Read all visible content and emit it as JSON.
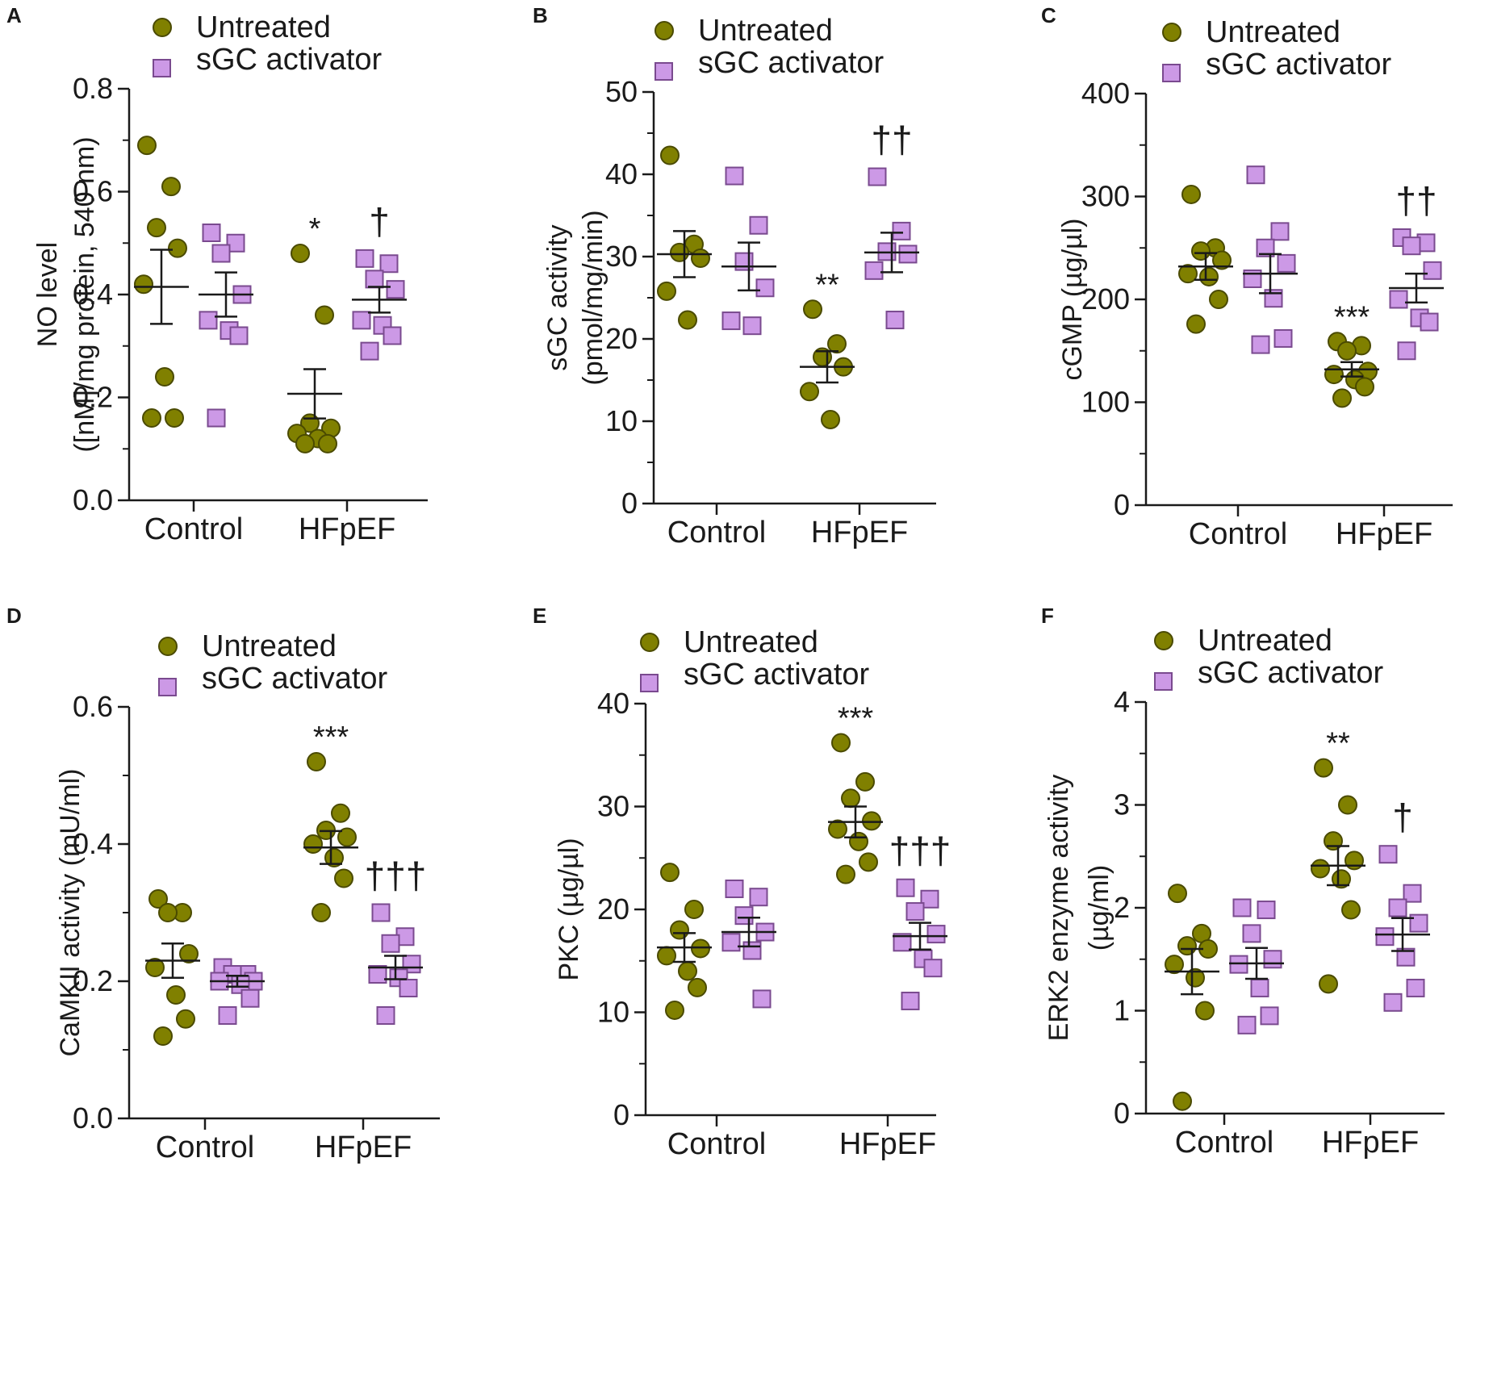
{
  "figure": {
    "colors": {
      "untreated_fill": "#808000",
      "untreated_stroke": "#4a4a00",
      "activator_fill": "#cc99e6",
      "activator_stroke": "#7a4a8f",
      "axis": "#1a1a1a",
      "mean_line": "#1a1a1a"
    },
    "legend": {
      "untreated_label": "Untreated",
      "activator_label": "sGC activator",
      "untreated_marker": "circle",
      "activator_marker": "square"
    }
  },
  "chart_data": [
    {
      "panel": "A",
      "type": "scatter",
      "ylabel_lines": [
        "NO level",
        "([nM]/mg protein, 540 nm)"
      ],
      "ylim": [
        0,
        0.8
      ],
      "yticks": [
        0.0,
        0.2,
        0.4,
        0.6,
        0.8
      ],
      "ytick_labels": [
        "0.0",
        "0.2",
        "0.4",
        "0.6",
        "0.8"
      ],
      "minor_ticks_per_interval": 1,
      "categories": [
        "Control",
        "HFpEF"
      ],
      "groups": [
        {
          "category": "Control",
          "series": "Untreated",
          "points": [
            0.69,
            0.61,
            0.53,
            0.49,
            0.42,
            0.24,
            0.16,
            0.16
          ],
          "mean": 0.415,
          "sem": 0.072,
          "sig": ""
        },
        {
          "category": "Control",
          "series": "sGC activator",
          "points": [
            0.52,
            0.5,
            0.48,
            0.4,
            0.35,
            0.33,
            0.32,
            0.16
          ],
          "mean": 0.4,
          "sem": 0.043,
          "sig": ""
        },
        {
          "category": "HFpEF",
          "series": "Untreated",
          "points": [
            0.48,
            0.36,
            0.15,
            0.14,
            0.13,
            0.12,
            0.11,
            0.11
          ],
          "mean": 0.207,
          "sem": 0.048,
          "sig": "*"
        },
        {
          "category": "HFpEF",
          "series": "sGC activator",
          "points": [
            0.47,
            0.46,
            0.43,
            0.41,
            0.35,
            0.34,
            0.32,
            0.29
          ],
          "mean": 0.39,
          "sem": 0.025,
          "sig": "†"
        }
      ]
    },
    {
      "panel": "B",
      "type": "scatter",
      "ylabel_lines": [
        "sGC activity",
        "(pmol/mg/min)"
      ],
      "ylim": [
        0,
        50
      ],
      "yticks": [
        0,
        10,
        20,
        30,
        40,
        50
      ],
      "ytick_labels": [
        "0",
        "10",
        "20",
        "30",
        "40",
        "50"
      ],
      "minor_ticks_per_interval": 1,
      "categories": [
        "Control",
        "HFpEF"
      ],
      "groups": [
        {
          "category": "Control",
          "series": "Untreated",
          "points": [
            42.3,
            31.5,
            30.5,
            29.8,
            25.8,
            22.3
          ],
          "mean": 30.3,
          "sem": 2.8,
          "sig": ""
        },
        {
          "category": "Control",
          "series": "sGC activator",
          "points": [
            39.8,
            33.8,
            29.4,
            26.2,
            22.2,
            21.6
          ],
          "mean": 28.8,
          "sem": 2.9,
          "sig": ""
        },
        {
          "category": "HFpEF",
          "series": "Untreated",
          "points": [
            23.6,
            19.4,
            17.8,
            16.6,
            13.6,
            10.2
          ],
          "mean": 16.6,
          "sem": 1.9,
          "sig": "**"
        },
        {
          "category": "HFpEF",
          "series": "sGC activator",
          "points": [
            39.7,
            33.1,
            30.6,
            30.3,
            28.3,
            22.3
          ],
          "mean": 30.5,
          "sem": 2.4,
          "sig": "††"
        }
      ]
    },
    {
      "panel": "C",
      "type": "scatter",
      "ylabel_lines": [
        "cGMP (µg/µl)"
      ],
      "ylim": [
        0,
        400
      ],
      "yticks": [
        0,
        100,
        200,
        300,
        400
      ],
      "ytick_labels": [
        "0",
        "100",
        "200",
        "300",
        "400"
      ],
      "minor_ticks_per_interval": 1,
      "categories": [
        "Control",
        "HFpEF"
      ],
      "groups": [
        {
          "category": "Control",
          "series": "Untreated",
          "points": [
            302,
            250,
            247,
            238,
            225,
            222,
            200,
            176
          ],
          "mean": 232,
          "sem": 13,
          "sig": ""
        },
        {
          "category": "Control",
          "series": "sGC activator",
          "points": [
            321,
            266,
            250,
            235,
            220,
            201,
            162,
            156
          ],
          "mean": 225,
          "sem": 19,
          "sig": ""
        },
        {
          "category": "HFpEF",
          "series": "Untreated",
          "points": [
            159,
            155,
            150,
            130,
            127,
            122,
            115,
            104
          ],
          "mean": 132,
          "sem": 7,
          "sig": "***"
        },
        {
          "category": "HFpEF",
          "series": "sGC activator",
          "points": [
            260,
            255,
            252,
            228,
            200,
            182,
            178,
            150
          ],
          "mean": 211,
          "sem": 14,
          "sig": "††"
        }
      ]
    },
    {
      "panel": "D",
      "type": "scatter",
      "ylabel_lines": [
        "CaMKII activity (mU/ml)"
      ],
      "ylim": [
        0,
        0.6
      ],
      "yticks": [
        0.0,
        0.2,
        0.4,
        0.6
      ],
      "ytick_labels": [
        "0.0",
        "0.2",
        "0.4",
        "0.6"
      ],
      "minor_ticks_per_interval": 1,
      "categories": [
        "Control",
        "HFpEF"
      ],
      "groups": [
        {
          "category": "Control",
          "series": "Untreated",
          "points": [
            0.32,
            0.3,
            0.3,
            0.24,
            0.22,
            0.18,
            0.145,
            0.12
          ],
          "mean": 0.23,
          "sem": 0.025,
          "sig": ""
        },
        {
          "category": "Control",
          "series": "sGC activator",
          "points": [
            0.22,
            0.21,
            0.21,
            0.2,
            0.2,
            0.195,
            0.175,
            0.15
          ],
          "mean": 0.2,
          "sem": 0.008,
          "sig": ""
        },
        {
          "category": "HFpEF",
          "series": "Untreated",
          "points": [
            0.52,
            0.445,
            0.42,
            0.41,
            0.4,
            0.38,
            0.35,
            0.3
          ],
          "mean": 0.395,
          "sem": 0.024,
          "sig": "***"
        },
        {
          "category": "HFpEF",
          "series": "sGC activator",
          "points": [
            0.3,
            0.265,
            0.255,
            0.225,
            0.21,
            0.205,
            0.19,
            0.15
          ],
          "mean": 0.22,
          "sem": 0.017,
          "sig": "†††"
        }
      ]
    },
    {
      "panel": "E",
      "type": "scatter",
      "ylabel_lines": [
        "PKC (µg/µl)"
      ],
      "ylim": [
        0,
        40
      ],
      "yticks": [
        0,
        10,
        20,
        30,
        40
      ],
      "ytick_labels": [
        "0",
        "10",
        "20",
        "30",
        "40"
      ],
      "minor_ticks_per_interval": 1,
      "categories": [
        "Control",
        "HFpEF"
      ],
      "groups": [
        {
          "category": "Control",
          "series": "Untreated",
          "points": [
            23.6,
            20.0,
            18.0,
            16.2,
            15.5,
            14.0,
            12.4,
            10.2
          ],
          "mean": 16.3,
          "sem": 1.4,
          "sig": ""
        },
        {
          "category": "Control",
          "series": "sGC activator",
          "points": [
            22.0,
            21.2,
            19.4,
            17.8,
            16.8,
            16.0,
            11.3
          ],
          "mean": 17.8,
          "sem": 1.4,
          "sig": ""
        },
        {
          "category": "HFpEF",
          "series": "Untreated",
          "points": [
            36.2,
            32.4,
            30.8,
            28.6,
            27.8,
            26.6,
            24.6,
            23.4
          ],
          "mean": 28.5,
          "sem": 1.5,
          "sig": "***"
        },
        {
          "category": "HFpEF",
          "series": "sGC activator",
          "points": [
            22.1,
            21.0,
            19.8,
            17.6,
            16.8,
            15.2,
            14.3,
            11.1
          ],
          "mean": 17.4,
          "sem": 1.3,
          "sig": "†††"
        }
      ]
    },
    {
      "panel": "F",
      "type": "scatter",
      "ylabel_lines": [
        "ERK2 enzyme activity",
        "(µg/ml)"
      ],
      "ylim": [
        0,
        4
      ],
      "yticks": [
        0,
        1,
        2,
        3,
        4
      ],
      "ytick_labels": [
        "0",
        "1",
        "2",
        "3",
        "4"
      ],
      "minor_ticks_per_interval": 1,
      "categories": [
        "Control",
        "HFpEF"
      ],
      "groups": [
        {
          "category": "Control",
          "series": "Untreated",
          "points": [
            2.14,
            1.75,
            1.63,
            1.6,
            1.45,
            1.32,
            1.0,
            0.12
          ],
          "mean": 1.38,
          "sem": 0.22,
          "sig": ""
        },
        {
          "category": "Control",
          "series": "sGC activator",
          "points": [
            2.0,
            1.98,
            1.75,
            1.5,
            1.45,
            1.22,
            0.95,
            0.86
          ],
          "mean": 1.46,
          "sem": 0.15,
          "sig": ""
        },
        {
          "category": "HFpEF",
          "series": "Untreated",
          "points": [
            3.36,
            3.0,
            2.65,
            2.46,
            2.38,
            2.28,
            1.98,
            1.26
          ],
          "mean": 2.41,
          "sem": 0.19,
          "sig": "**"
        },
        {
          "category": "HFpEF",
          "series": "sGC activator",
          "points": [
            2.52,
            2.14,
            2.0,
            1.85,
            1.72,
            1.52,
            1.22,
            1.08
          ],
          "mean": 1.74,
          "sem": 0.16,
          "sig": "†"
        }
      ]
    }
  ]
}
